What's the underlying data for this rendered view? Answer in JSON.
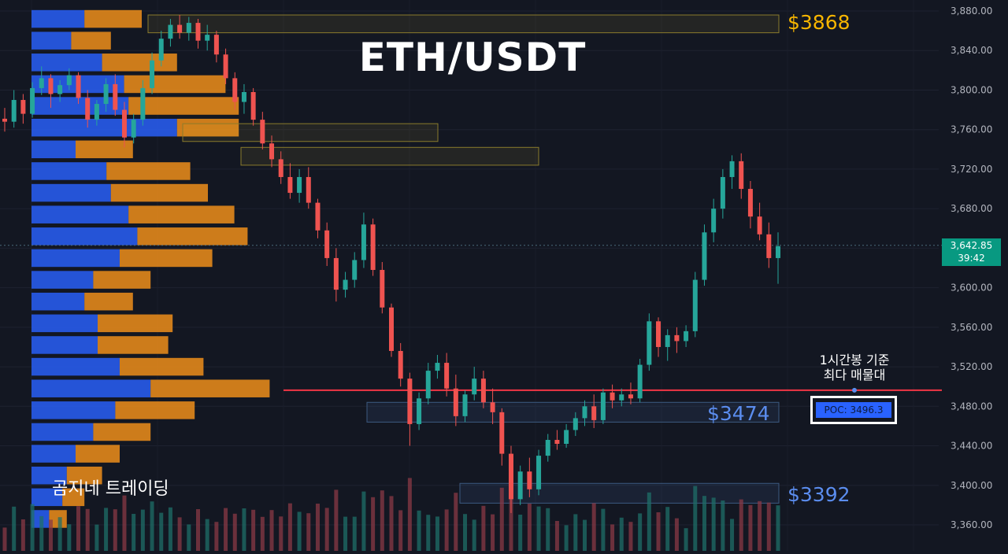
{
  "title": "ETH/USDT",
  "watermark": "곰지네 트레이딩",
  "price_axis": {
    "ticks": [
      "3,880.00",
      "3,840.00",
      "3,800.00",
      "3,760.00",
      "3,720.00",
      "3,680.00",
      "3,640.00",
      "3,600.00",
      "3,560.00",
      "3,520.00",
      "3,480.00",
      "3,440.00",
      "3,400.00",
      "3,360.00"
    ],
    "current_price": "3,642.85",
    "countdown": "39:42"
  },
  "levels": {
    "top": "$3868",
    "middle": "$3474",
    "bottom": "$3392"
  },
  "poc": {
    "label": "POC: 3496.3",
    "caption_line1": "1시간봉 기준",
    "caption_line2": "최다 매물대"
  },
  "colors": {
    "background": "#131722",
    "up": "#26a69a",
    "down": "#ef5350",
    "profile_buy": "#2962ff",
    "profile_sell": "#f7931a",
    "poc_line": "#f23645",
    "top_label": "#f7b500",
    "level_label": "#5b8def",
    "badge": "#089981"
  },
  "chart_data": {
    "type": "candlestick",
    "ylim": [
      3348,
      3888
    ],
    "candles_ohlc": [
      [
        3771,
        3782,
        3758,
        3768
      ],
      [
        3768,
        3800,
        3762,
        3790
      ],
      [
        3790,
        3796,
        3766,
        3776
      ],
      [
        3776,
        3808,
        3772,
        3802
      ],
      [
        3802,
        3824,
        3795,
        3812
      ],
      [
        3812,
        3816,
        3782,
        3796
      ],
      [
        3796,
        3810,
        3788,
        3805
      ],
      [
        3805,
        3822,
        3800,
        3815
      ],
      [
        3815,
        3818,
        3786,
        3792
      ],
      [
        3792,
        3800,
        3762,
        3770
      ],
      [
        3770,
        3790,
        3764,
        3786
      ],
      [
        3786,
        3812,
        3778,
        3806
      ],
      [
        3806,
        3816,
        3774,
        3780
      ],
      [
        3780,
        3788,
        3742,
        3752
      ],
      [
        3752,
        3776,
        3746,
        3770
      ],
      [
        3770,
        3810,
        3764,
        3802
      ],
      [
        3802,
        3838,
        3796,
        3830
      ],
      [
        3830,
        3860,
        3824,
        3852
      ],
      [
        3852,
        3872,
        3844,
        3866
      ],
      [
        3866,
        3876,
        3852,
        3858
      ],
      [
        3858,
        3874,
        3850,
        3868
      ],
      [
        3868,
        3872,
        3842,
        3850
      ],
      [
        3850,
        3866,
        3840,
        3856
      ],
      [
        3856,
        3860,
        3828,
        3836
      ],
      [
        3836,
        3842,
        3806,
        3812
      ],
      [
        3812,
        3818,
        3780,
        3788
      ],
      [
        3788,
        3806,
        3776,
        3798
      ],
      [
        3798,
        3802,
        3764,
        3770
      ],
      [
        3770,
        3778,
        3740,
        3746
      ],
      [
        3746,
        3754,
        3722,
        3730
      ],
      [
        3730,
        3738,
        3705,
        3712
      ],
      [
        3712,
        3726,
        3690,
        3696
      ],
      [
        3696,
        3720,
        3686,
        3712
      ],
      [
        3712,
        3722,
        3680,
        3686
      ],
      [
        3686,
        3690,
        3650,
        3658
      ],
      [
        3658,
        3666,
        3622,
        3630
      ],
      [
        3630,
        3640,
        3586,
        3598
      ],
      [
        3598,
        3616,
        3590,
        3608
      ],
      [
        3608,
        3636,
        3600,
        3628
      ],
      [
        3628,
        3676,
        3620,
        3664
      ],
      [
        3664,
        3670,
        3612,
        3618
      ],
      [
        3618,
        3626,
        3574,
        3580
      ],
      [
        3580,
        3584,
        3530,
        3536
      ],
      [
        3536,
        3544,
        3500,
        3508
      ],
      [
        3508,
        3514,
        3440,
        3462
      ],
      [
        3462,
        3494,
        3456,
        3488
      ],
      [
        3488,
        3524,
        3482,
        3516
      ],
      [
        3516,
        3532,
        3508,
        3524
      ],
      [
        3524,
        3534,
        3490,
        3498
      ],
      [
        3498,
        3512,
        3460,
        3470
      ],
      [
        3470,
        3496,
        3464,
        3492
      ],
      [
        3492,
        3520,
        3486,
        3508
      ],
      [
        3508,
        3516,
        3478,
        3484
      ],
      [
        3484,
        3498,
        3462,
        3474
      ],
      [
        3474,
        3478,
        3420,
        3432
      ],
      [
        3432,
        3440,
        3372,
        3386
      ],
      [
        3386,
        3420,
        3380,
        3414
      ],
      [
        3414,
        3428,
        3388,
        3396
      ],
      [
        3396,
        3436,
        3390,
        3430
      ],
      [
        3430,
        3452,
        3424,
        3446
      ],
      [
        3446,
        3456,
        3436,
        3442
      ],
      [
        3442,
        3462,
        3438,
        3456
      ],
      [
        3456,
        3474,
        3450,
        3468
      ],
      [
        3468,
        3486,
        3460,
        3480
      ],
      [
        3480,
        3492,
        3458,
        3466
      ],
      [
        3466,
        3498,
        3462,
        3494
      ],
      [
        3494,
        3502,
        3478,
        3486
      ],
      [
        3486,
        3498,
        3480,
        3492
      ],
      [
        3492,
        3504,
        3482,
        3488
      ],
      [
        3488,
        3528,
        3484,
        3522
      ],
      [
        3522,
        3574,
        3516,
        3566
      ],
      [
        3566,
        3570,
        3530,
        3540
      ],
      [
        3540,
        3558,
        3526,
        3552
      ],
      [
        3552,
        3560,
        3534,
        3546
      ],
      [
        3546,
        3562,
        3540,
        3556
      ],
      [
        3556,
        3616,
        3550,
        3608
      ],
      [
        3608,
        3664,
        3602,
        3656
      ],
      [
        3656,
        3690,
        3646,
        3680
      ],
      [
        3680,
        3720,
        3670,
        3712
      ],
      [
        3712,
        3734,
        3700,
        3728
      ],
      [
        3728,
        3736,
        3690,
        3700
      ],
      [
        3700,
        3708,
        3660,
        3672
      ],
      [
        3672,
        3686,
        3648,
        3654
      ],
      [
        3654,
        3666,
        3620,
        3630
      ],
      [
        3630,
        3656,
        3604,
        3642
      ]
    ],
    "volume_profile": [
      {
        "price": 3872,
        "buy": 0.12,
        "sell": 0.13
      },
      {
        "price": 3850,
        "buy": 0.09,
        "sell": 0.09
      },
      {
        "price": 3828,
        "buy": 0.16,
        "sell": 0.17
      },
      {
        "price": 3806,
        "buy": 0.21,
        "sell": 0.23
      },
      {
        "price": 3784,
        "buy": 0.22,
        "sell": 0.25
      },
      {
        "price": 3762,
        "buy": 0.33,
        "sell": 0.14
      },
      {
        "price": 3740,
        "buy": 0.1,
        "sell": 0.13
      },
      {
        "price": 3718,
        "buy": 0.17,
        "sell": 0.19
      },
      {
        "price": 3696,
        "buy": 0.18,
        "sell": 0.22
      },
      {
        "price": 3674,
        "buy": 0.22,
        "sell": 0.24
      },
      {
        "price": 3652,
        "buy": 0.24,
        "sell": 0.25
      },
      {
        "price": 3630,
        "buy": 0.2,
        "sell": 0.21
      },
      {
        "price": 3608,
        "buy": 0.14,
        "sell": 0.13
      },
      {
        "price": 3586,
        "buy": 0.12,
        "sell": 0.11
      },
      {
        "price": 3564,
        "buy": 0.15,
        "sell": 0.17
      },
      {
        "price": 3542,
        "buy": 0.15,
        "sell": 0.16
      },
      {
        "price": 3520,
        "buy": 0.2,
        "sell": 0.19
      },
      {
        "price": 3498,
        "buy": 0.27,
        "sell": 0.27
      },
      {
        "price": 3476,
        "buy": 0.19,
        "sell": 0.18
      },
      {
        "price": 3454,
        "buy": 0.14,
        "sell": 0.13
      },
      {
        "price": 3432,
        "buy": 0.1,
        "sell": 0.1
      },
      {
        "price": 3410,
        "buy": 0.08,
        "sell": 0.08
      },
      {
        "price": 3388,
        "buy": 0.07,
        "sell": 0.05
      },
      {
        "price": 3366,
        "buy": 0.04,
        "sell": 0.04
      }
    ],
    "zones": [
      {
        "low": 3858,
        "high": 3876,
        "color": "yellow"
      },
      {
        "low": 3748,
        "high": 3766,
        "color": "yellow"
      },
      {
        "low": 3724,
        "high": 3742,
        "color": "yellow"
      },
      {
        "low": 3464,
        "high": 3484,
        "color": "blue"
      },
      {
        "low": 3382,
        "high": 3402,
        "color": "blue"
      }
    ],
    "poc_price": 3496.3,
    "current_price": 3642.85
  }
}
